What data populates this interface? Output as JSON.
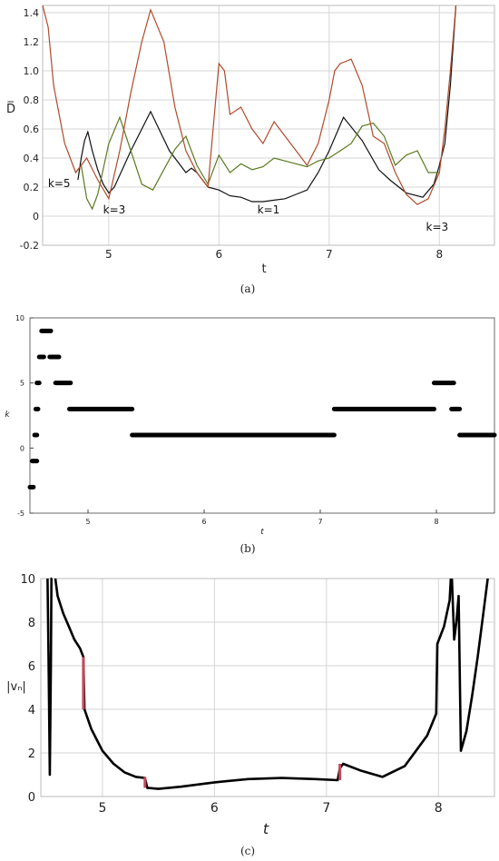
{
  "figure": {
    "captions": [
      "(a)",
      "(b)",
      "(c)"
    ]
  },
  "chart_data": [
    {
      "id": "a",
      "type": "line",
      "title": "",
      "xlabel": "t",
      "ylabel": "D̅",
      "xlim": [
        4.4,
        8.5
      ],
      "ylim": [
        -0.2,
        1.45
      ],
      "xticks": [
        "5",
        "6",
        "7",
        "8"
      ],
      "yticks": [
        "-0.2",
        "0",
        "0.2",
        "0.4",
        "0.6",
        "0.8",
        "1.0",
        "1.2",
        "1.4"
      ],
      "grid": true,
      "colors": {
        "black": "#111111",
        "green": "#5a7a1e",
        "red": "#b04a2a"
      },
      "series": [
        {
          "color": "black",
          "x": [
            4.72,
            4.75,
            4.78,
            4.81,
            4.85,
            4.9,
            4.95,
            5.0,
            5.05,
            5.2,
            5.38,
            5.55,
            5.7,
            5.75,
            5.8,
            5.9,
            6.0,
            6.1,
            6.2,
            6.3,
            6.4,
            6.5,
            6.6,
            6.7,
            6.8,
            6.9,
            7.0,
            7.13,
            7.3,
            7.45,
            7.55,
            7.7,
            7.85,
            7.95,
            8.0,
            8.05,
            8.1,
            8.15
          ],
          "y": [
            0.25,
            0.4,
            0.52,
            0.58,
            0.45,
            0.32,
            0.22,
            0.16,
            0.2,
            0.45,
            0.72,
            0.45,
            0.3,
            0.33,
            0.3,
            0.2,
            0.18,
            0.14,
            0.13,
            0.1,
            0.1,
            0.11,
            0.12,
            0.15,
            0.18,
            0.3,
            0.45,
            0.68,
            0.52,
            0.32,
            0.25,
            0.16,
            0.13,
            0.22,
            0.35,
            0.5,
            0.9,
            1.45
          ]
        },
        {
          "color": "green",
          "x": [
            4.7,
            4.75,
            4.8,
            4.85,
            4.9,
            5.0,
            5.1,
            5.2,
            5.3,
            5.4,
            5.5,
            5.6,
            5.7,
            5.8,
            5.9,
            6.0,
            6.1,
            6.2,
            6.3,
            6.4,
            6.5,
            6.6,
            6.7,
            6.8,
            6.9,
            7.0,
            7.1,
            7.2,
            7.3,
            7.4,
            7.5,
            7.6,
            7.7,
            7.8,
            7.9,
            8.0
          ],
          "y": [
            0.3,
            0.35,
            0.12,
            0.05,
            0.15,
            0.5,
            0.68,
            0.45,
            0.22,
            0.18,
            0.32,
            0.46,
            0.55,
            0.35,
            0.22,
            0.42,
            0.3,
            0.36,
            0.32,
            0.34,
            0.4,
            0.38,
            0.36,
            0.34,
            0.38,
            0.4,
            0.45,
            0.5,
            0.62,
            0.64,
            0.55,
            0.35,
            0.42,
            0.45,
            0.3,
            0.3
          ]
        },
        {
          "color": "red",
          "x": [
            4.4,
            4.45,
            4.5,
            4.55,
            4.6,
            4.65,
            4.7,
            4.8,
            4.9,
            5.0,
            5.1,
            5.2,
            5.3,
            5.38,
            5.5,
            5.6,
            5.7,
            5.8,
            5.9,
            6.0,
            6.05,
            6.1,
            6.2,
            6.3,
            6.4,
            6.5,
            6.6,
            6.7,
            6.8,
            6.9,
            7.0,
            7.05,
            7.1,
            7.2,
            7.3,
            7.4,
            7.5,
            7.6,
            7.7,
            7.8,
            7.9,
            8.0,
            8.05,
            8.1,
            8.15
          ],
          "y": [
            1.45,
            1.3,
            0.9,
            0.7,
            0.5,
            0.4,
            0.3,
            0.4,
            0.25,
            0.12,
            0.45,
            0.85,
            1.2,
            1.42,
            1.2,
            0.75,
            0.45,
            0.3,
            0.2,
            1.05,
            1.0,
            0.7,
            0.75,
            0.6,
            0.5,
            0.65,
            0.55,
            0.45,
            0.35,
            0.5,
            0.8,
            1.0,
            1.05,
            1.08,
            0.9,
            0.55,
            0.5,
            0.3,
            0.15,
            0.08,
            0.12,
            0.3,
            0.6,
            1.0,
            1.45
          ]
        }
      ],
      "annotations": [
        {
          "text": "k=5",
          "x": 4.55,
          "y": 0.2
        },
        {
          "text": "k=3",
          "x": 5.05,
          "y": 0.02
        },
        {
          "text": "k=1",
          "x": 6.45,
          "y": 0.02
        },
        {
          "text": "k=3",
          "x": 7.98,
          "y": -0.1
        }
      ]
    },
    {
      "id": "b",
      "type": "scatter",
      "title": "",
      "xlabel": "t",
      "ylabel": "k",
      "xlim": [
        4.5,
        8.5
      ],
      "ylim": [
        -5,
        10
      ],
      "xticks": [
        "5",
        "6",
        "7",
        "8"
      ],
      "yticks": [
        "-5",
        "0",
        "5",
        "10"
      ],
      "grid": false,
      "color": "#000000",
      "segments": [
        {
          "x0": 4.5,
          "x1": 4.53,
          "k": -3
        },
        {
          "x0": 4.52,
          "x1": 4.56,
          "k": -1
        },
        {
          "x0": 4.54,
          "x1": 4.56,
          "k": 1
        },
        {
          "x0": 4.55,
          "x1": 4.57,
          "k": 3
        },
        {
          "x0": 4.56,
          "x1": 4.58,
          "k": 5
        },
        {
          "x0": 4.58,
          "x1": 4.62,
          "k": 7
        },
        {
          "x0": 4.6,
          "x1": 4.68,
          "k": 9
        },
        {
          "x0": 4.67,
          "x1": 4.75,
          "k": 7
        },
        {
          "x0": 4.72,
          "x1": 4.85,
          "k": 5
        },
        {
          "x0": 4.84,
          "x1": 5.38,
          "k": 3
        },
        {
          "x0": 5.38,
          "x1": 7.12,
          "k": 1
        },
        {
          "x0": 7.12,
          "x1": 7.98,
          "k": 3
        },
        {
          "x0": 7.98,
          "x1": 8.15,
          "k": 5
        },
        {
          "x0": 8.13,
          "x1": 8.2,
          "k": 3
        },
        {
          "x0": 8.2,
          "x1": 8.5,
          "k": 1
        }
      ]
    },
    {
      "id": "c",
      "type": "line",
      "title": "",
      "xlabel": "t",
      "ylabel": "|vₙ|",
      "xlim": [
        4.45,
        8.5
      ],
      "ylim": [
        0,
        10
      ],
      "xticks": [
        "5",
        "6",
        "7",
        "8"
      ],
      "yticks": [
        "0",
        "2",
        "4",
        "6",
        "8",
        "10"
      ],
      "grid": true,
      "colors": {
        "line": "#000000",
        "highlight": "#c4485a"
      },
      "series": [
        {
          "color": "line",
          "x": [
            4.51,
            4.52,
            4.53,
            4.54,
            4.545,
            4.55
          ],
          "y": [
            10,
            6,
            1.0,
            6,
            10,
            10
          ]
        },
        {
          "color": "line",
          "x": [
            4.58,
            4.6,
            4.65,
            4.7,
            4.75,
            4.8,
            4.83,
            4.84,
            4.9,
            5.0,
            5.1,
            5.2,
            5.3,
            5.38,
            5.4,
            5.5,
            5.7,
            6.0,
            6.3,
            6.6,
            6.9,
            7.1,
            7.12,
            7.15,
            7.3,
            7.5,
            7.7,
            7.9,
            7.98,
            7.99,
            8.05,
            8.1,
            8.11
          ],
          "y": [
            10,
            9.2,
            8.4,
            7.8,
            7.2,
            6.8,
            6.4,
            4.0,
            3.1,
            2.1,
            1.5,
            1.1,
            0.9,
            0.85,
            0.4,
            0.35,
            0.45,
            0.65,
            0.8,
            0.85,
            0.8,
            0.75,
            1.3,
            1.5,
            1.2,
            0.9,
            1.4,
            2.8,
            3.8,
            7.0,
            7.8,
            9.0,
            10
          ]
        },
        {
          "color": "line",
          "x": [
            8.12,
            8.14,
            8.16,
            8.18,
            8.2,
            8.25,
            8.3,
            8.35,
            8.4,
            8.44
          ],
          "y": [
            10,
            7.2,
            8.0,
            9.2,
            2.1,
            3.0,
            4.6,
            6.4,
            8.4,
            10
          ]
        }
      ],
      "highlights": [
        {
          "x": 4.83,
          "y0": 4.0,
          "y1": 6.4
        },
        {
          "x": 5.38,
          "y0": 0.4,
          "y1": 0.9
        },
        {
          "x": 7.12,
          "y0": 0.75,
          "y1": 1.5
        }
      ]
    }
  ]
}
